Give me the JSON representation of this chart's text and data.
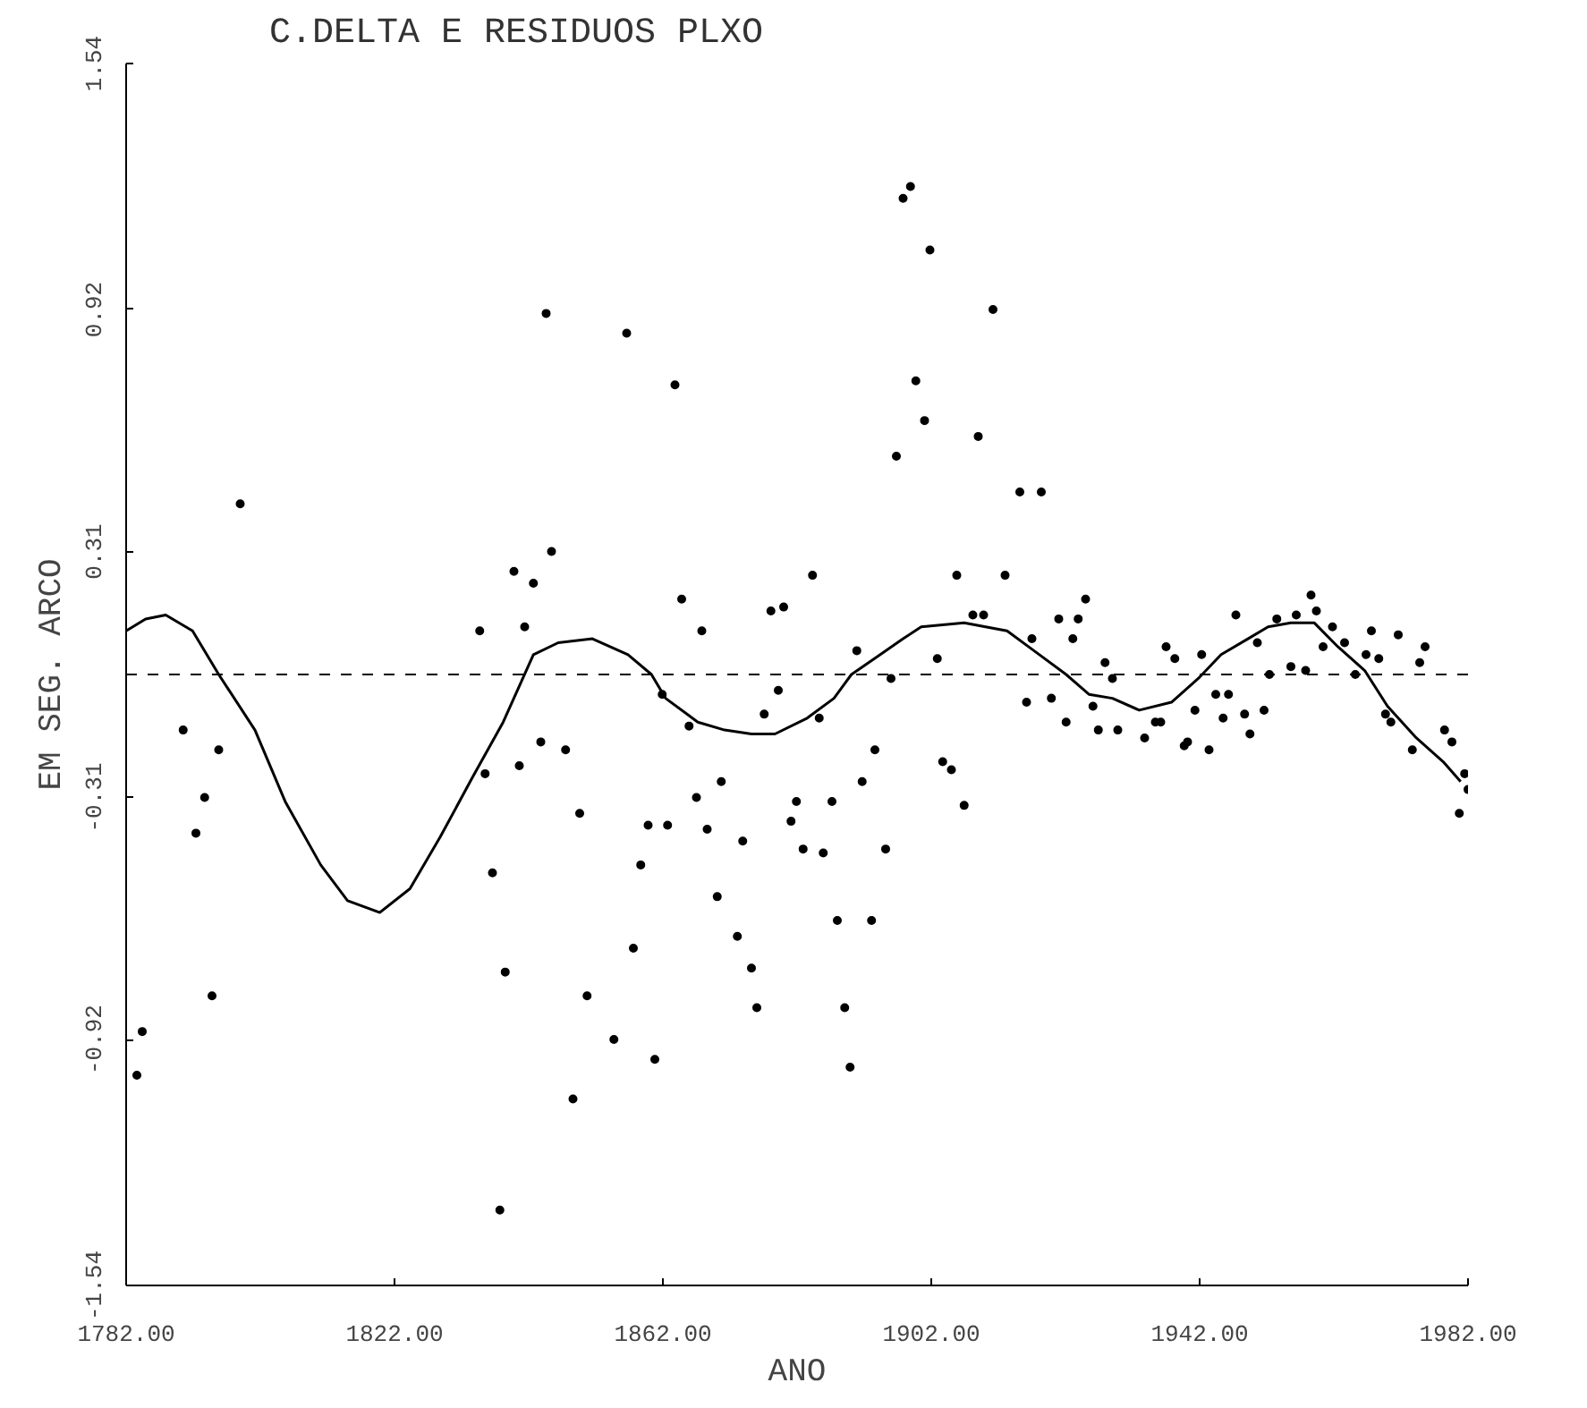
{
  "chart_data": {
    "type": "scatter",
    "title": "C.DELTA E RESIDUOS PLXO",
    "xlabel": "ANO",
    "ylabel": "EM SEG. ARCO",
    "xlim": [
      1782,
      1982
    ],
    "ylim": [
      -1.54,
      1.54
    ],
    "xticks": [
      {
        "value": 1782,
        "label": "1782.00"
      },
      {
        "value": 1822,
        "label": "1822.00"
      },
      {
        "value": 1862,
        "label": "1862.00"
      },
      {
        "value": 1902,
        "label": "1902.00"
      },
      {
        "value": 1942,
        "label": "1942.00"
      },
      {
        "value": 1982,
        "label": "1982.00"
      }
    ],
    "yticks": [
      -1.54,
      -0.92,
      -0.31,
      0.31,
      0.92,
      1.54
    ],
    "grid": false,
    "ref_lines": [
      {
        "axis": "y",
        "value": 0,
        "line_style": "dashed",
        "color": "#000000"
      }
    ],
    "series": [
      {
        "type": "scatter",
        "marker": "circle",
        "color": "#000000",
        "x": [
          1784.4,
          1783.6,
          1790.5,
          1793.7,
          1792.4,
          1795.8,
          1794.8,
          1799.0,
          1834.7,
          1839.8,
          1842.7,
          1845.4,
          1841.4,
          1844.6,
          1856.6,
          1863.8,
          1835.5,
          1836.6,
          1840.6,
          1843.8,
          1847.5,
          1849.6,
          1838.5,
          1837.7,
          1848.6,
          1850.7,
          1854.7,
          1857.6,
          1858.7,
          1859.8,
          1862.7,
          1860.8,
          1864.8,
          1867.8,
          1861.9,
          1865.9,
          1867.0,
          1870.7,
          1868.6,
          1870.1,
          1873.1,
          1873.9,
          1875.2,
          1876.0,
          1878.1,
          1880.0,
          1884.3,
          1879.2,
          1877.1,
          1881.9,
          1881.1,
          1882.9,
          1885.9,
          1887.2,
          1885.3,
          1888.0,
          1889.1,
          1889.9,
          1890.9,
          1891.7,
          1893.6,
          1895.2,
          1893.1,
          1896.0,
          1896.8,
          1897.8,
          1898.9,
          1899.7,
          1901.0,
          1901.8,
          1902.9,
          1903.7,
          1905.0,
          1906.9,
          1905.8,
          1908.2,
          1909.8,
          1909.0,
          1911.2,
          1913.0,
          1915.2,
          1918.4,
          1916.2,
          1917.0,
          1919.9,
          1921.0,
          1922.1,
          1923.1,
          1923.9,
          1925.0,
          1926.1,
          1926.9,
          1927.9,
          1929.0,
          1929.8,
          1933.8,
          1935.4,
          1936.2,
          1937.0,
          1938.3,
          1939.7,
          1940.2,
          1941.3,
          1942.3,
          1943.4,
          1944.4,
          1945.5,
          1946.3,
          1947.4,
          1948.7,
          1949.5,
          1950.6,
          1951.6,
          1952.4,
          1953.5,
          1955.6,
          1956.4,
          1957.8,
          1958.6,
          1959.4,
          1960.4,
          1961.8,
          1963.6,
          1965.2,
          1966.8,
          1967.6,
          1968.7,
          1969.7,
          1970.5,
          1971.6,
          1973.7,
          1974.8,
          1975.6,
          1978.5,
          1979.6,
          1980.7,
          1981.5,
          1982.0
        ],
        "values": [
          -0.9,
          -1.01,
          -0.14,
          -0.31,
          -0.4,
          -0.19,
          -0.81,
          0.43,
          0.11,
          0.26,
          0.23,
          0.31,
          0.12,
          0.91,
          0.86,
          0.73,
          -0.25,
          -0.5,
          -0.23,
          -0.17,
          -0.19,
          -0.35,
          -0.75,
          -1.35,
          -1.07,
          -0.81,
          -0.92,
          -0.69,
          -0.48,
          -0.38,
          -0.38,
          -0.97,
          0.19,
          0.11,
          -0.05,
          -0.13,
          -0.31,
          -0.27,
          -0.39,
          -0.56,
          -0.66,
          -0.42,
          -0.74,
          -0.84,
          0.16,
          0.17,
          0.25,
          -0.04,
          -0.1,
          -0.32,
          -0.37,
          -0.44,
          -0.45,
          -0.32,
          -0.11,
          -0.62,
          -0.84,
          -0.99,
          0.06,
          -0.27,
          -0.19,
          -0.44,
          -0.62,
          -0.01,
          0.55,
          1.2,
          1.23,
          0.74,
          0.64,
          1.07,
          0.04,
          -0.22,
          -0.24,
          -0.33,
          0.25,
          0.15,
          0.15,
          0.6,
          0.92,
          0.25,
          0.46,
          0.46,
          -0.07,
          0.09,
          -0.06,
          0.14,
          -0.12,
          0.09,
          0.14,
          0.19,
          -0.08,
          -0.14,
          0.03,
          -0.01,
          -0.14,
          -0.16,
          -0.12,
          -0.12,
          0.07,
          0.04,
          -0.18,
          -0.17,
          -0.09,
          0.05,
          -0.19,
          -0.05,
          -0.11,
          -0.05,
          0.15,
          -0.1,
          -0.15,
          0.08,
          -0.09,
          0.0,
          0.14,
          0.02,
          0.15,
          0.01,
          0.2,
          0.16,
          0.07,
          0.12,
          0.08,
          0.0,
          0.05,
          0.11,
          0.04,
          -0.1,
          -0.12,
          0.1,
          -0.19,
          0.03,
          0.07,
          -0.14,
          -0.17,
          -0.35,
          -0.25,
          -0.29
        ]
      },
      {
        "type": "line",
        "marker": "none",
        "color": "#000000",
        "line_style": "solid",
        "x": [
          1782.0,
          1784.9,
          1787.9,
          1791.9,
          1795.8,
          1801.2,
          1805.7,
          1811.0,
          1815.0,
          1819.8,
          1824.3,
          1828.8,
          1833.6,
          1838.2,
          1842.7,
          1846.4,
          1851.5,
          1856.8,
          1860.3,
          1862.4,
          1867.2,
          1871.2,
          1875.2,
          1878.7,
          1883.5,
          1887.5,
          1890.1,
          1894.4,
          1897.8,
          1900.5,
          1906.9,
          1913.3,
          1917.3,
          1922.1,
          1925.5,
          1929.0,
          1933.0,
          1937.8,
          1941.8,
          1945.2,
          1949.2,
          1952.2,
          1955.6,
          1959.1,
          1962.6,
          1966.6,
          1970.0,
          1974.3,
          1978.3,
          1980.9
        ],
        "values": [
          0.11,
          0.14,
          0.15,
          0.11,
          0.0,
          -0.14,
          -0.32,
          -0.48,
          -0.57,
          -0.6,
          -0.54,
          -0.41,
          -0.26,
          -0.12,
          0.05,
          0.08,
          0.09,
          0.05,
          0.0,
          -0.06,
          -0.12,
          -0.14,
          -0.15,
          -0.15,
          -0.11,
          -0.06,
          0.0,
          0.05,
          0.09,
          0.12,
          0.13,
          0.11,
          0.06,
          0.0,
          -0.05,
          -0.06,
          -0.09,
          -0.07,
          -0.01,
          0.05,
          0.09,
          0.12,
          0.13,
          0.13,
          0.07,
          0.01,
          -0.08,
          -0.16,
          -0.22,
          -0.27
        ]
      }
    ]
  }
}
